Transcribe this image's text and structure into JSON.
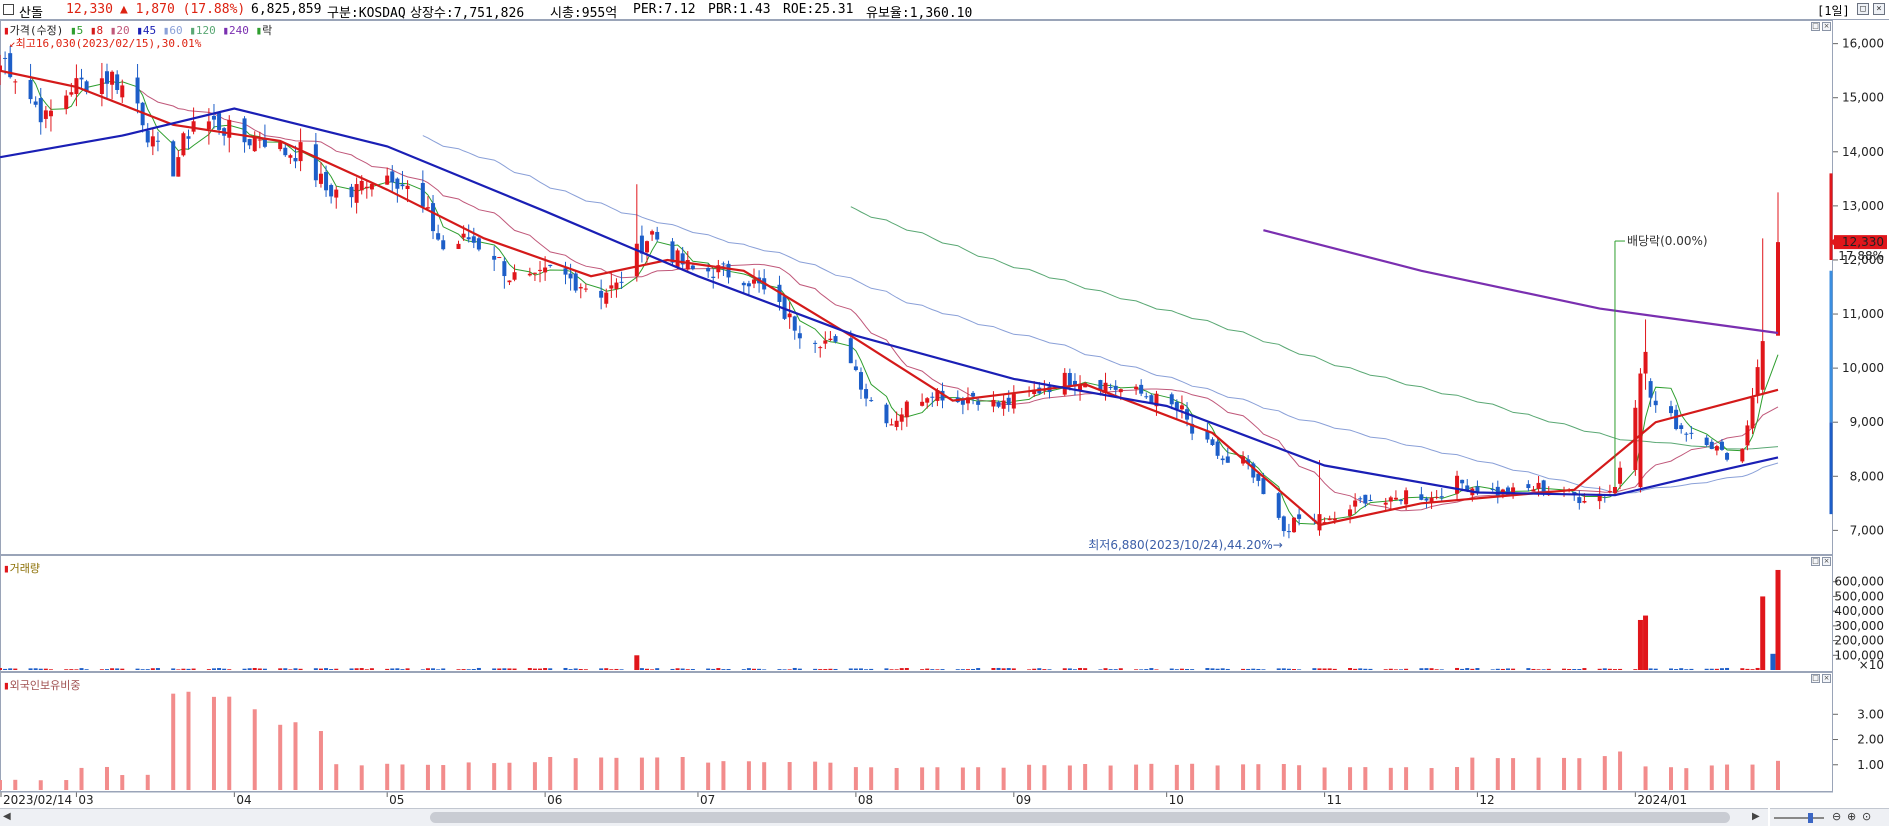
{
  "header": {
    "name": "산돌",
    "price": "12,330",
    "change": "▲ 1,870 (17.88%)",
    "volume": "6,825,859",
    "market": "구분:KOSDAQ",
    "shares": "상장수:7,751,826",
    "mcap": "시총:955억",
    "per": "PER:7.12",
    "pbr": "PBR:1.43",
    "roe": "ROE:25.31",
    "float": "유보율:1,360.10",
    "period": "[1일]"
  },
  "legend": {
    "price": "가격(수정)",
    "ma": [
      "5",
      "8",
      "20",
      "45",
      "60",
      "120",
      "240"
    ],
    "rak": "락",
    "high": "최고16,030(2023/02/15),30.01%",
    "low": "최저6,880(2023/10/24),44.20%",
    "dividend": "배당락(0.00%)",
    "last_price": "12,330",
    "last_pct": "17.88%"
  },
  "volume_panel": {
    "title": "거래량",
    "unit": "×10"
  },
  "foreign_panel": {
    "title": "외국인보유비중"
  },
  "colors": {
    "up": "#e0161b",
    "down": "#1d5ec8",
    "ma5": "#2e9e2e",
    "ma8": "#d41a1a",
    "ma20": "#c0587a",
    "ma45": "#1a1fb5",
    "ma60": "#8aa0d8",
    "ma120": "#5aa874",
    "ma240": "#7a2fb0",
    "foreign_bar": "#f28c8c"
  },
  "chart_data": [
    {
      "type": "candlestick",
      "title": "산돌",
      "xlabel": "",
      "ylabel": "",
      "ylim": [
        6600,
        16400
      ],
      "yticks": [
        16000,
        15000,
        14000,
        13000,
        12000,
        11000,
        10000,
        9000,
        8000,
        7000
      ],
      "ytick_labels": [
        "16,000",
        "15,000",
        "14,000",
        "13,000",
        "12,000",
        "11,000",
        "10,000",
        "9,000",
        "8,000",
        "7,000"
      ],
      "x_range": [
        "2023/02/14",
        "2024/01/29"
      ],
      "xtick_labels": [
        "2023/02/14",
        "03",
        "04",
        "05",
        "06",
        "07",
        "08",
        "09",
        "10",
        "11",
        "12",
        "2024/01"
      ],
      "close_path": [
        [
          "2023/02/14",
          15600
        ],
        [
          "2023/02/15",
          15700
        ],
        [
          "2023/02/20",
          15000
        ],
        [
          "2023/02/23",
          14600
        ],
        [
          "2023/02/28",
          15200
        ],
        [
          "2023/03/03",
          15300
        ],
        [
          "2023/03/08",
          15400
        ],
        [
          "2023/03/13",
          14900
        ],
        [
          "2023/03/16",
          14100
        ],
        [
          "2023/03/20",
          13700
        ],
        [
          "2023/03/24",
          14600
        ],
        [
          "2023/03/29",
          14500
        ],
        [
          "2023/04/03",
          14200
        ],
        [
          "2023/04/06",
          14300
        ],
        [
          "2023/04/11",
          14000
        ],
        [
          "2023/04/14",
          14000
        ],
        [
          "2023/04/19",
          13300
        ],
        [
          "2023/04/24",
          13200
        ],
        [
          "2023/04/27",
          13500
        ],
        [
          "2023/05/02",
          13600
        ],
        [
          "2023/05/05",
          13300
        ],
        [
          "2023/05/09",
          12800
        ],
        [
          "2023/05/12",
          12200
        ],
        [
          "2023/05/17",
          12400
        ],
        [
          "2023/05/22",
          12100
        ],
        [
          "2023/05/25",
          11700
        ],
        [
          "2023/05/30",
          11600
        ],
        [
          "2023/06/02",
          11800
        ],
        [
          "2023/06/07",
          11600
        ],
        [
          "2023/06/12",
          11400
        ],
        [
          "2023/06/15",
          11500
        ],
        [
          "2023/06/19",
          12200
        ],
        [
          "2023/06/22",
          12500
        ],
        [
          "2023/06/27",
          12000
        ],
        [
          "2023/06/30",
          11800
        ],
        [
          "2023/07/05",
          11800
        ],
        [
          "2023/07/10",
          11700
        ],
        [
          "2023/07/13",
          11500
        ],
        [
          "2023/07/18",
          11000
        ],
        [
          "2023/07/21",
          10700
        ],
        [
          "2023/07/26",
          10500
        ],
        [
          "2023/07/31",
          10200
        ],
        [
          "2023/08/03",
          9500
        ],
        [
          "2023/08/08",
          9000
        ],
        [
          "2023/08/11",
          9300
        ],
        [
          "2023/08/16",
          9600
        ],
        [
          "2023/08/21",
          9400
        ],
        [
          "2023/08/24",
          9500
        ],
        [
          "2023/08/29",
          9300
        ],
        [
          "2023/09/01",
          9400
        ],
        [
          "2023/09/06",
          9600
        ],
        [
          "2023/09/11",
          9800
        ],
        [
          "2023/09/14",
          9800
        ],
        [
          "2023/09/19",
          9700
        ],
        [
          "2023/09/22",
          9600
        ],
        [
          "2023/09/27",
          9500
        ],
        [
          "2023/10/04",
          9200
        ],
        [
          "2023/10/06",
          8800
        ],
        [
          "2023/10/11",
          8400
        ],
        [
          "2023/10/13",
          8200
        ],
        [
          "2023/10/16",
          8300
        ],
        [
          "2023/10/19",
          7800
        ],
        [
          "2023/10/24",
          7000
        ],
        [
          "2023/10/27",
          7200
        ],
        [
          "2023/11/01",
          7100
        ],
        [
          "2023/11/06",
          7400
        ],
        [
          "2023/11/09",
          7600
        ],
        [
          "2023/11/14",
          7500
        ],
        [
          "2023/11/17",
          7700
        ],
        [
          "2023/11/22",
          7600
        ],
        [
          "2023/11/27",
          7900
        ],
        [
          "2023/11/30",
          7800
        ],
        [
          "2023/12/05",
          7700
        ],
        [
          "2023/12/08",
          7700
        ],
        [
          "2023/12/13",
          7800
        ],
        [
          "2023/12/18",
          7700
        ],
        [
          "2023/12/21",
          7600
        ],
        [
          "2023/12/26",
          7700
        ],
        [
          "2023/12/28",
          7800
        ],
        [
          "2024/01/02",
          9800
        ],
        [
          "2024/01/05",
          9300
        ],
        [
          "2024/01/10",
          8900
        ],
        [
          "2024/01/15",
          8700
        ],
        [
          "2024/01/18",
          8400
        ],
        [
          "2024/01/22",
          8500
        ],
        [
          "2024/01/24",
          9500
        ],
        [
          "2024/01/26",
          10700
        ],
        [
          "2024/01/29",
          12330
        ]
      ],
      "ma_lines": [
        {
          "name": "8",
          "points": [
            [
              "2023/02/14",
              15500
            ],
            [
              "2023/03/01",
              15200
            ],
            [
              "2023/03/20",
              14500
            ],
            [
              "2023/04/10",
              14200
            ],
            [
              "2023/05/01",
              13300
            ],
            [
              "2023/05/20",
              12400
            ],
            [
              "2023/06/10",
              11700
            ],
            [
              "2023/06/25",
              12000
            ],
            [
              "2023/07/10",
              11800
            ],
            [
              "2023/07/31",
              10600
            ],
            [
              "2023/08/20",
              9400
            ],
            [
              "2023/09/15",
              9700
            ],
            [
              "2023/10/10",
              8800
            ],
            [
              "2023/10/31",
              7100
            ],
            [
              "2023/11/20",
              7500
            ],
            [
              "2023/12/20",
              7750
            ],
            [
              "2024/01/05",
              9000
            ],
            [
              "2024/01/29",
              9600
            ]
          ]
        },
        {
          "name": "45",
          "points": [
            [
              "2023/02/14",
              13900
            ],
            [
              "2023/03/10",
              14300
            ],
            [
              "2023/04/01",
              14800
            ],
            [
              "2023/05/01",
              14100
            ],
            [
              "2023/06/01",
              12900
            ],
            [
              "2023/07/01",
              11700
            ],
            [
              "2023/08/01",
              10600
            ],
            [
              "2023/09/01",
              9800
            ],
            [
              "2023/10/01",
              9300
            ],
            [
              "2023/11/01",
              8200
            ],
            [
              "2023/12/01",
              7700
            ],
            [
              "2023/12/28",
              7650
            ],
            [
              "2024/01/15",
              8050
            ],
            [
              "2024/01/29",
              8350
            ]
          ]
        },
        {
          "name": "240",
          "points": [
            [
              "2023/10/20",
              12550
            ],
            [
              "2023/11/20",
              11800
            ],
            [
              "2023/12/25",
              11100
            ],
            [
              "2024/01/29",
              10650
            ]
          ]
        }
      ]
    },
    {
      "type": "bar",
      "title": "거래량",
      "ylabel": "×10",
      "ylim": [
        0,
        700000
      ],
      "yticks": [
        100000,
        200000,
        300000,
        400000,
        500000,
        600000
      ],
      "ytick_labels": [
        "100,000",
        "200,000",
        "300,000",
        "400,000",
        "500,000",
        "600,000"
      ],
      "values": [
        {
          "x": "2023/06/19",
          "value": 100000,
          "dir": "up"
        },
        {
          "x": "2024/01/02",
          "value": 340000,
          "dir": "up"
        },
        {
          "x": "2024/01/03",
          "value": 370000,
          "dir": "up"
        },
        {
          "x": "2024/01/26",
          "value": 500000,
          "dir": "up"
        },
        {
          "x": "2024/01/28",
          "value": 110000,
          "dir": "down"
        },
        {
          "x": "2024/01/29",
          "value": 680000,
          "dir": "up"
        }
      ]
    },
    {
      "type": "bar",
      "title": "외국인보유비중",
      "ylim": [
        0,
        4.2
      ],
      "yticks": [
        1.0,
        2.0,
        3.0
      ],
      "ytick_labels": [
        "1.00",
        "2.00",
        "3.00"
      ],
      "series": [
        {
          "name": "외국인보유비중",
          "points": [
            [
              "2023/02/14",
              0.4
            ],
            [
              "2023/03/01",
              0.9
            ],
            [
              "2023/03/10",
              0.6
            ],
            [
              "2023/03/20",
              3.8
            ],
            [
              "2023/04/01",
              3.3
            ],
            [
              "2023/04/10",
              2.6
            ],
            [
              "2023/04/14",
              2.3
            ],
            [
              "2023/04/20",
              1.0
            ],
            [
              "2023/05/15",
              1.1
            ],
            [
              "2023/06/01",
              1.3
            ],
            [
              "2023/06/30",
              1.1
            ],
            [
              "2023/07/31",
              0.9
            ],
            [
              "2023/08/31",
              1.0
            ],
            [
              "2023/09/30",
              1.0
            ],
            [
              "2023/10/31",
              0.9
            ],
            [
              "2023/11/30",
              1.3
            ],
            [
              "2023/12/28",
              1.5
            ],
            [
              "2024/01/02",
              0.9
            ],
            [
              "2024/01/15",
              1.0
            ],
            [
              "2024/01/29",
              1.2
            ]
          ]
        }
      ]
    }
  ]
}
